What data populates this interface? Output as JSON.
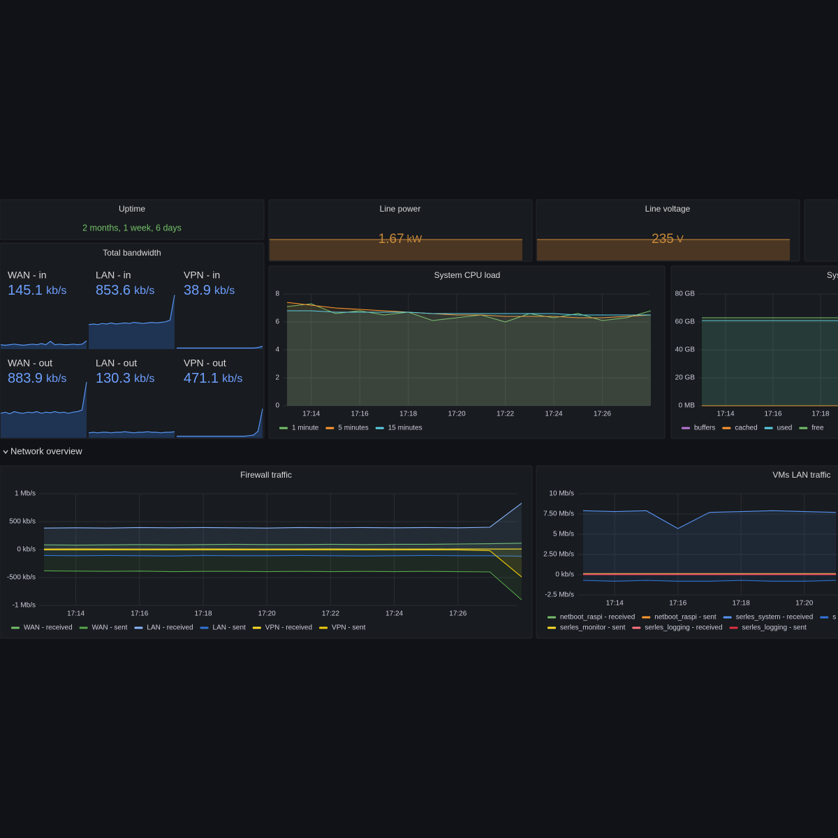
{
  "uptime": {
    "title": "Uptime",
    "value": "2 months, 1 week, 6 days"
  },
  "line_power": {
    "title": "Line power",
    "value": 1.67,
    "unit": "kW"
  },
  "line_voltage": {
    "title": "Line voltage",
    "value": 235,
    "unit": "V"
  },
  "total_bandwidth": {
    "title": "Total bandwidth",
    "ylim": [
      0,
      100
    ],
    "stats": [
      {
        "name": "WAN - in",
        "value": 145.1,
        "unit": "kb/s",
        "sparkline": [
          8,
          7,
          8,
          9,
          8,
          7,
          8,
          9,
          8,
          10,
          8,
          14,
          8,
          9,
          8,
          8,
          9,
          8,
          9,
          15
        ]
      },
      {
        "name": "LAN - in",
        "value": 853.6,
        "unit": "kb/s",
        "sparkline": [
          44,
          45,
          44,
          46,
          45,
          47,
          45,
          46,
          47,
          46,
          48,
          47,
          46,
          47,
          48,
          47,
          48,
          49,
          52,
          97
        ]
      },
      {
        "name": "VPN - in",
        "value": 38.9,
        "unit": "kb/s",
        "sparkline": [
          2,
          2,
          2,
          2,
          2,
          2,
          2,
          2,
          2,
          2,
          2,
          2,
          2,
          2,
          2,
          2,
          2,
          2,
          3,
          5
        ]
      },
      {
        "name": "WAN - out",
        "value": 883.9,
        "unit": "kb/s",
        "sparkline": [
          44,
          46,
          43,
          47,
          45,
          44,
          46,
          45,
          47,
          44,
          46,
          45,
          47,
          45,
          46,
          44,
          46,
          47,
          50,
          100
        ]
      },
      {
        "name": "LAN - out",
        "value": 130.3,
        "unit": "kb/s",
        "sparkline": [
          9,
          10,
          9,
          10,
          10,
          9,
          10,
          10,
          11,
          10,
          9,
          10,
          10,
          11,
          10,
          10,
          9,
          10,
          10,
          11
        ]
      },
      {
        "name": "VPN - out",
        "value": 471.1,
        "unit": "kb/s",
        "sparkline": [
          3,
          3,
          3,
          3,
          3,
          3,
          3,
          3,
          3,
          3,
          3,
          3,
          3,
          3,
          3,
          3,
          4,
          5,
          12,
          52
        ]
      }
    ]
  },
  "cpu": {
    "type": "line",
    "title": "System CPU load",
    "x": [
      "17:13",
      "17:14",
      "17:15",
      "17:16",
      "17:17",
      "17:18",
      "17:19",
      "17:20",
      "17:21",
      "17:22",
      "17:23",
      "17:24",
      "17:25",
      "17:26",
      "17:27",
      "17:28"
    ],
    "xlim": [
      "17:13",
      "17:28"
    ],
    "xticks": [
      "17:14",
      "17:16",
      "17:18",
      "17:20",
      "17:22",
      "17:24",
      "17:26"
    ],
    "ylim": [
      0,
      8
    ],
    "yticks": [
      0,
      2,
      4,
      6,
      8
    ],
    "series": [
      {
        "name": "1 minute",
        "color": "#73bf69",
        "values": [
          7.1,
          7.3,
          6.6,
          6.8,
          6.5,
          6.7,
          6.1,
          6.3,
          6.5,
          6.0,
          6.6,
          6.3,
          6.6,
          6.1,
          6.3,
          6.8
        ]
      },
      {
        "name": "5 minutes",
        "color": "#ff9830",
        "values": [
          7.4,
          7.2,
          7.0,
          6.9,
          6.8,
          6.7,
          6.6,
          6.5,
          6.5,
          6.4,
          6.4,
          6.4,
          6.3,
          6.3,
          6.4,
          6.5
        ]
      },
      {
        "name": "15 minutes",
        "color": "#5ccfe6",
        "values": [
          6.8,
          6.8,
          6.7,
          6.7,
          6.7,
          6.7,
          6.6,
          6.6,
          6.6,
          6.6,
          6.6,
          6.6,
          6.5,
          6.5,
          6.5,
          6.5
        ]
      }
    ]
  },
  "memory": {
    "type": "line",
    "title": "Sys",
    "x": [
      "17:13",
      "17:14",
      "17:15",
      "17:16",
      "17:17",
      "17:18",
      "17:19"
    ],
    "xlim": [
      "17:13",
      "17:19"
    ],
    "xticks": [
      "17:14",
      "17:16",
      "17:18"
    ],
    "ylim": [
      0,
      80
    ],
    "yticks": [
      {
        "value": 0,
        "label": "0 MB"
      },
      {
        "value": 20,
        "label": "20 GB"
      },
      {
        "value": 40,
        "label": "40 GB"
      },
      {
        "value": 60,
        "label": "60 GB"
      },
      {
        "value": 80,
        "label": "80 GB"
      }
    ],
    "series": [
      {
        "name": "buffers",
        "color": "#b877d9",
        "values": [
          0,
          0,
          0,
          0,
          0,
          0,
          0
        ]
      },
      {
        "name": "cached",
        "color": "#ff9830",
        "values": [
          0,
          0,
          0,
          0,
          0,
          0,
          0
        ]
      },
      {
        "name": "used",
        "color": "#5ccfe6",
        "values": [
          61,
          61,
          61,
          61,
          61,
          61,
          61
        ]
      },
      {
        "name": "free",
        "color": "#73bf69",
        "values": [
          63,
          63,
          63,
          63,
          63,
          63,
          63
        ]
      }
    ]
  },
  "row": {
    "title": "Network overview"
  },
  "firewall": {
    "type": "line",
    "title": "Firewall traffic",
    "x": [
      "17:13",
      "17:14",
      "17:15",
      "17:16",
      "17:17",
      "17:18",
      "17:19",
      "17:20",
      "17:21",
      "17:22",
      "17:23",
      "17:24",
      "17:25",
      "17:26",
      "17:27",
      "17:28"
    ],
    "xlim": [
      "17:13",
      "17:28"
    ],
    "xticks": [
      "17:14",
      "17:16",
      "17:18",
      "17:20",
      "17:22",
      "17:24",
      "17:26"
    ],
    "ylim": [
      -1000,
      1000
    ],
    "yticks": [
      {
        "value": -1000,
        "label": "-1 Mb/s"
      },
      {
        "value": -500,
        "label": "-500 kb/s"
      },
      {
        "value": 0,
        "label": "0 kb/s"
      },
      {
        "value": 500,
        "label": "500 kb/s"
      },
      {
        "value": 1000,
        "label": "1 Mb/s"
      }
    ],
    "series": [
      {
        "name": "WAN - received",
        "color": "#73bf69",
        "values": [
          85,
          80,
          85,
          90,
          85,
          90,
          95,
          90,
          90,
          95,
          90,
          95,
          95,
          100,
          105,
          115
        ]
      },
      {
        "name": "WAN - sent",
        "color": "#56a64b",
        "values": [
          -380,
          -385,
          -390,
          -385,
          -395,
          -390,
          -390,
          -395,
          -390,
          -395,
          -390,
          -395,
          -390,
          -395,
          -400,
          -900
        ]
      },
      {
        "name": "LAN - received",
        "color": "#8ab8ff",
        "values": [
          385,
          390,
          385,
          395,
          390,
          395,
          390,
          385,
          395,
          390,
          395,
          390,
          395,
          390,
          400,
          830
        ]
      },
      {
        "name": "LAN - sent",
        "color": "#3274d9",
        "values": [
          -105,
          -110,
          -105,
          -110,
          -115,
          -105,
          -110,
          -110,
          -105,
          -110,
          -115,
          -110,
          -105,
          -110,
          -110,
          -120
        ]
      },
      {
        "name": "VPN - received",
        "color": "#fade2a",
        "values": [
          10,
          12,
          10,
          11,
          10,
          12,
          10,
          11,
          10,
          12,
          10,
          11,
          10,
          12,
          10,
          10
        ]
      },
      {
        "name": "VPN - sent",
        "color": "#f2cc0c",
        "values": [
          -5,
          -5,
          -5,
          -5,
          -5,
          -5,
          -5,
          -5,
          -5,
          -5,
          -5,
          -5,
          -5,
          -5,
          -20,
          -490
        ]
      }
    ]
  },
  "vms": {
    "type": "line",
    "title": "VMs LAN traffic",
    "x": [
      "17:13",
      "17:14",
      "17:15",
      "17:16",
      "17:17",
      "17:18",
      "17:19",
      "17:20",
      "17:21"
    ],
    "xlim": [
      "17:13",
      "17:21"
    ],
    "xticks": [
      "17:14",
      "17:16",
      "17:18",
      "17:20"
    ],
    "ylim": [
      -2.5,
      10
    ],
    "yticks": [
      {
        "value": -2.5,
        "label": "-2.5 Mb/s"
      },
      {
        "value": 0,
        "label": "0 kb/s"
      },
      {
        "value": 2.5,
        "label": "2.50 Mb/s"
      },
      {
        "value": 5,
        "label": "5 Mb/s"
      },
      {
        "value": 7.5,
        "label": "7.50 Mb/s"
      },
      {
        "value": 10,
        "label": "10 Mb/s"
      }
    ],
    "series": [
      {
        "name": "netboot_raspi - received",
        "color": "#73bf69",
        "values": [
          0.1,
          0.1,
          0.1,
          0.1,
          0.1,
          0.1,
          0.1,
          0.1,
          0.1
        ]
      },
      {
        "name": "netboot_raspi - sent",
        "color": "#ff9830",
        "values": [
          0.15,
          0.15,
          0.15,
          0.15,
          0.15,
          0.15,
          0.15,
          0.15,
          0.15
        ]
      },
      {
        "name": "serles_system - received",
        "color": "#5794f2",
        "values": [
          7.9,
          7.8,
          7.9,
          5.7,
          7.7,
          7.8,
          7.9,
          7.8,
          7.7
        ]
      },
      {
        "name": "s",
        "color": "#3274d9",
        "values": [
          -0.7,
          -0.8,
          -0.7,
          -0.8,
          -0.8,
          -0.7,
          -0.8,
          -0.8,
          -0.7
        ]
      },
      {
        "name": "serles_monitor - sent",
        "color": "#fade2a",
        "values": [
          0,
          0,
          0,
          0,
          0,
          0,
          0,
          0,
          0
        ]
      },
      {
        "name": "serles_logging - received",
        "color": "#ff7383",
        "values": [
          0.05,
          0.05,
          0.05,
          0.05,
          0.05,
          0.05,
          0.05,
          0.05,
          0.05
        ]
      },
      {
        "name": "serles_logging - sent",
        "color": "#e02f44",
        "values": [
          0,
          0,
          0,
          0,
          0,
          0,
          0,
          0,
          0
        ]
      }
    ]
  }
}
